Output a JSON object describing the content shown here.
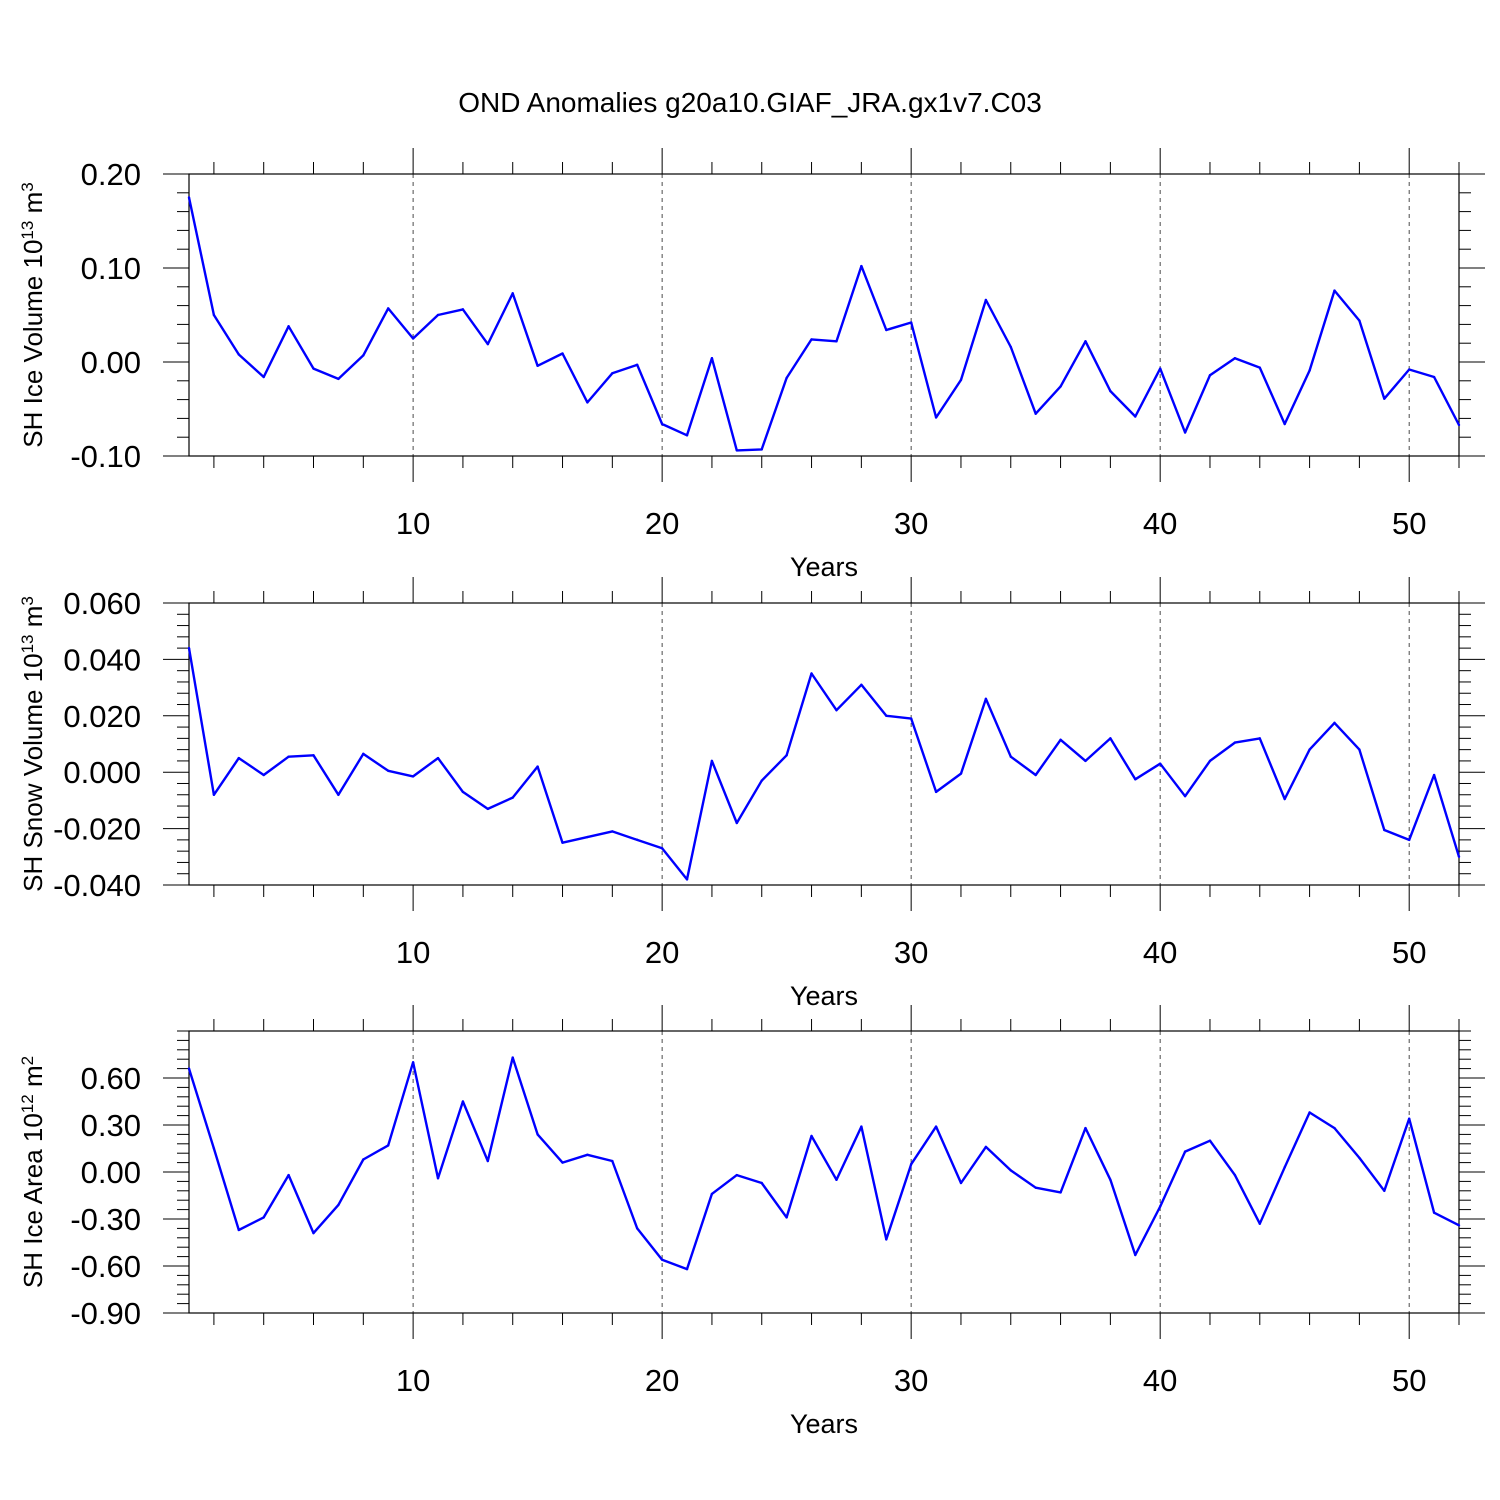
{
  "title": "OND Anomalies g20a10.GIAF_JRA.gx1v7.C03",
  "colors": {
    "line": "#0000ff",
    "axis": "#000000",
    "grid": "#000000",
    "background": "#ffffff"
  },
  "chart_data": [
    {
      "type": "line",
      "ylabel_base": "SH Ice Volume 10",
      "ylabel_exp": "13",
      "ylabel_unit": " m",
      "ylabel_unit_exp": "3",
      "xlabel": "Years",
      "xlim": [
        1,
        52
      ],
      "ylim": [
        -0.1,
        0.2
      ],
      "yticks": [
        -0.1,
        0.0,
        0.1,
        0.2
      ],
      "yticklabels": [
        "-0.10",
        "0.00",
        "0.10",
        "0.20"
      ],
      "xticks": [
        10,
        20,
        30,
        40,
        50
      ],
      "xticklabels": [
        "10",
        "20",
        "30",
        "40",
        "50"
      ],
      "grid_x": [
        10,
        20,
        30,
        40,
        50
      ],
      "x": [
        1,
        2,
        3,
        4,
        5,
        6,
        7,
        8,
        9,
        10,
        11,
        12,
        13,
        14,
        15,
        16,
        17,
        18,
        19,
        20,
        21,
        22,
        23,
        24,
        25,
        26,
        27,
        28,
        29,
        30,
        31,
        32,
        33,
        34,
        35,
        36,
        37,
        38,
        39,
        40,
        41,
        42,
        43,
        44,
        45,
        46,
        47,
        48,
        49,
        50,
        51,
        52
      ],
      "values": [
        0.175,
        0.05,
        0.008,
        -0.016,
        0.038,
        -0.007,
        -0.018,
        0.007,
        0.057,
        0.025,
        0.05,
        0.056,
        0.019,
        0.073,
        -0.004,
        0.009,
        -0.043,
        -0.012,
        -0.003,
        -0.066,
        -0.078,
        0.004,
        -0.094,
        -0.093,
        -0.017,
        0.024,
        0.022,
        0.102,
        0.034,
        0.042,
        -0.059,
        -0.019,
        0.066,
        0.016,
        -0.055,
        -0.026,
        0.022,
        -0.031,
        -0.058,
        -0.007,
        -0.075,
        -0.014,
        0.004,
        -0.006,
        -0.066,
        -0.009,
        0.076,
        0.044,
        -0.039,
        -0.008,
        -0.016,
        -0.067
      ]
    },
    {
      "type": "line",
      "ylabel_base": "SH Snow Volume 10",
      "ylabel_exp": "13",
      "ylabel_unit": " m",
      "ylabel_unit_exp": "3",
      "xlabel": "Years",
      "xlim": [
        1,
        52
      ],
      "ylim": [
        -0.04,
        0.06
      ],
      "yticks": [
        -0.04,
        -0.02,
        0.0,
        0.02,
        0.04,
        0.06
      ],
      "yticklabels": [
        "-0.040",
        "-0.020",
        "0.000",
        "0.020",
        "0.040",
        "0.060"
      ],
      "xticks": [
        10,
        20,
        30,
        40,
        50
      ],
      "xticklabels": [
        "10",
        "20",
        "30",
        "40",
        "50"
      ],
      "grid_x": [
        20,
        30,
        40,
        50
      ],
      "x": [
        1,
        2,
        3,
        4,
        5,
        6,
        7,
        8,
        9,
        10,
        11,
        12,
        13,
        14,
        15,
        16,
        17,
        18,
        19,
        20,
        21,
        22,
        23,
        24,
        25,
        26,
        27,
        28,
        29,
        30,
        31,
        32,
        33,
        34,
        35,
        36,
        37,
        38,
        39,
        40,
        41,
        42,
        43,
        44,
        45,
        46,
        47,
        48,
        49,
        50,
        51,
        52
      ],
      "values": [
        0.044,
        -0.008,
        0.005,
        -0.001,
        0.0055,
        0.006,
        -0.008,
        0.0065,
        0.0005,
        -0.0015,
        0.005,
        -0.007,
        -0.013,
        -0.009,
        0.002,
        -0.025,
        -0.023,
        -0.021,
        -0.024,
        -0.027,
        -0.038,
        0.004,
        -0.018,
        -0.003,
        0.006,
        0.035,
        0.022,
        0.031,
        0.02,
        0.019,
        -0.007,
        -0.0005,
        0.026,
        0.0055,
        -0.001,
        0.0115,
        0.004,
        0.012,
        -0.0025,
        0.003,
        -0.0085,
        0.004,
        0.0105,
        0.012,
        -0.0095,
        0.008,
        0.0175,
        0.008,
        -0.0205,
        -0.024,
        -0.001,
        -0.03
      ]
    },
    {
      "type": "line",
      "ylabel_base": "SH Ice Area 10",
      "ylabel_exp": "12",
      "ylabel_unit": " m",
      "ylabel_unit_exp": "2",
      "xlabel": "Years",
      "xlim": [
        1,
        52
      ],
      "ylim": [
        -0.9,
        0.9
      ],
      "yticks": [
        -0.9,
        -0.6,
        -0.3,
        0.0,
        0.3,
        0.6
      ],
      "yticklabels": [
        "-0.90",
        "-0.60",
        "-0.30",
        "0.00",
        "0.30",
        "0.60"
      ],
      "xticks": [
        10,
        20,
        30,
        40,
        50
      ],
      "xticklabels": [
        "10",
        "20",
        "30",
        "40",
        "50"
      ],
      "grid_x": [
        10,
        20,
        30,
        40,
        50
      ],
      "x": [
        1,
        2,
        3,
        4,
        5,
        6,
        7,
        8,
        9,
        10,
        11,
        12,
        13,
        14,
        15,
        16,
        17,
        18,
        19,
        20,
        21,
        22,
        23,
        24,
        25,
        26,
        27,
        28,
        29,
        30,
        31,
        32,
        33,
        34,
        35,
        36,
        37,
        38,
        39,
        40,
        41,
        42,
        43,
        44,
        45,
        46,
        47,
        48,
        49,
        50,
        51,
        52
      ],
      "values": [
        0.66,
        0.15,
        -0.37,
        -0.29,
        -0.02,
        -0.39,
        -0.21,
        0.08,
        0.17,
        0.7,
        -0.04,
        0.45,
        0.07,
        0.73,
        0.24,
        0.06,
        0.11,
        0.07,
        -0.36,
        -0.56,
        -0.62,
        -0.14,
        -0.02,
        -0.07,
        -0.29,
        0.23,
        -0.05,
        0.29,
        -0.43,
        0.05,
        0.29,
        -0.07,
        0.16,
        0.01,
        -0.1,
        -0.13,
        0.28,
        -0.05,
        -0.53,
        -0.22,
        0.13,
        0.2,
        -0.02,
        -0.33,
        0.03,
        0.38,
        0.28,
        0.09,
        -0.12,
        0.34,
        -0.26,
        -0.34
      ]
    }
  ]
}
